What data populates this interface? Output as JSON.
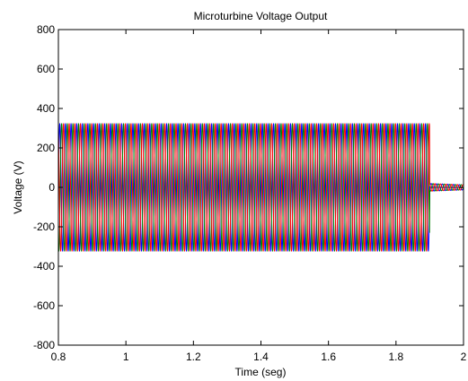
{
  "chart_data": {
    "type": "line",
    "title": "Microturbine Voltage Output",
    "xlabel": "Time (seg)",
    "ylabel": "Voltage (V)",
    "xlim": [
      0.8,
      2
    ],
    "ylim": [
      -800,
      800
    ],
    "x_ticks": [
      "0.8",
      "1",
      "1.2",
      "1.4",
      "1.6",
      "1.8",
      "2"
    ],
    "y_ticks": [
      "800",
      "600",
      "400",
      "200",
      "0",
      "-200",
      "-400",
      "-600",
      "-800"
    ],
    "grid": false,
    "signal": {
      "frequency_hz": 60,
      "amplitude_v": 325,
      "cutoff_time_s": 1.9,
      "post_cutoff_amplitude_v": 20
    },
    "series": [
      {
        "color": "#0000ff",
        "phase_deg": 0
      },
      {
        "color": "#008000",
        "phase_deg": -120
      },
      {
        "color": "#ff0000",
        "phase_deg": 120
      }
    ],
    "colors": {
      "axis": "#000000",
      "background": "#ffffff"
    }
  }
}
